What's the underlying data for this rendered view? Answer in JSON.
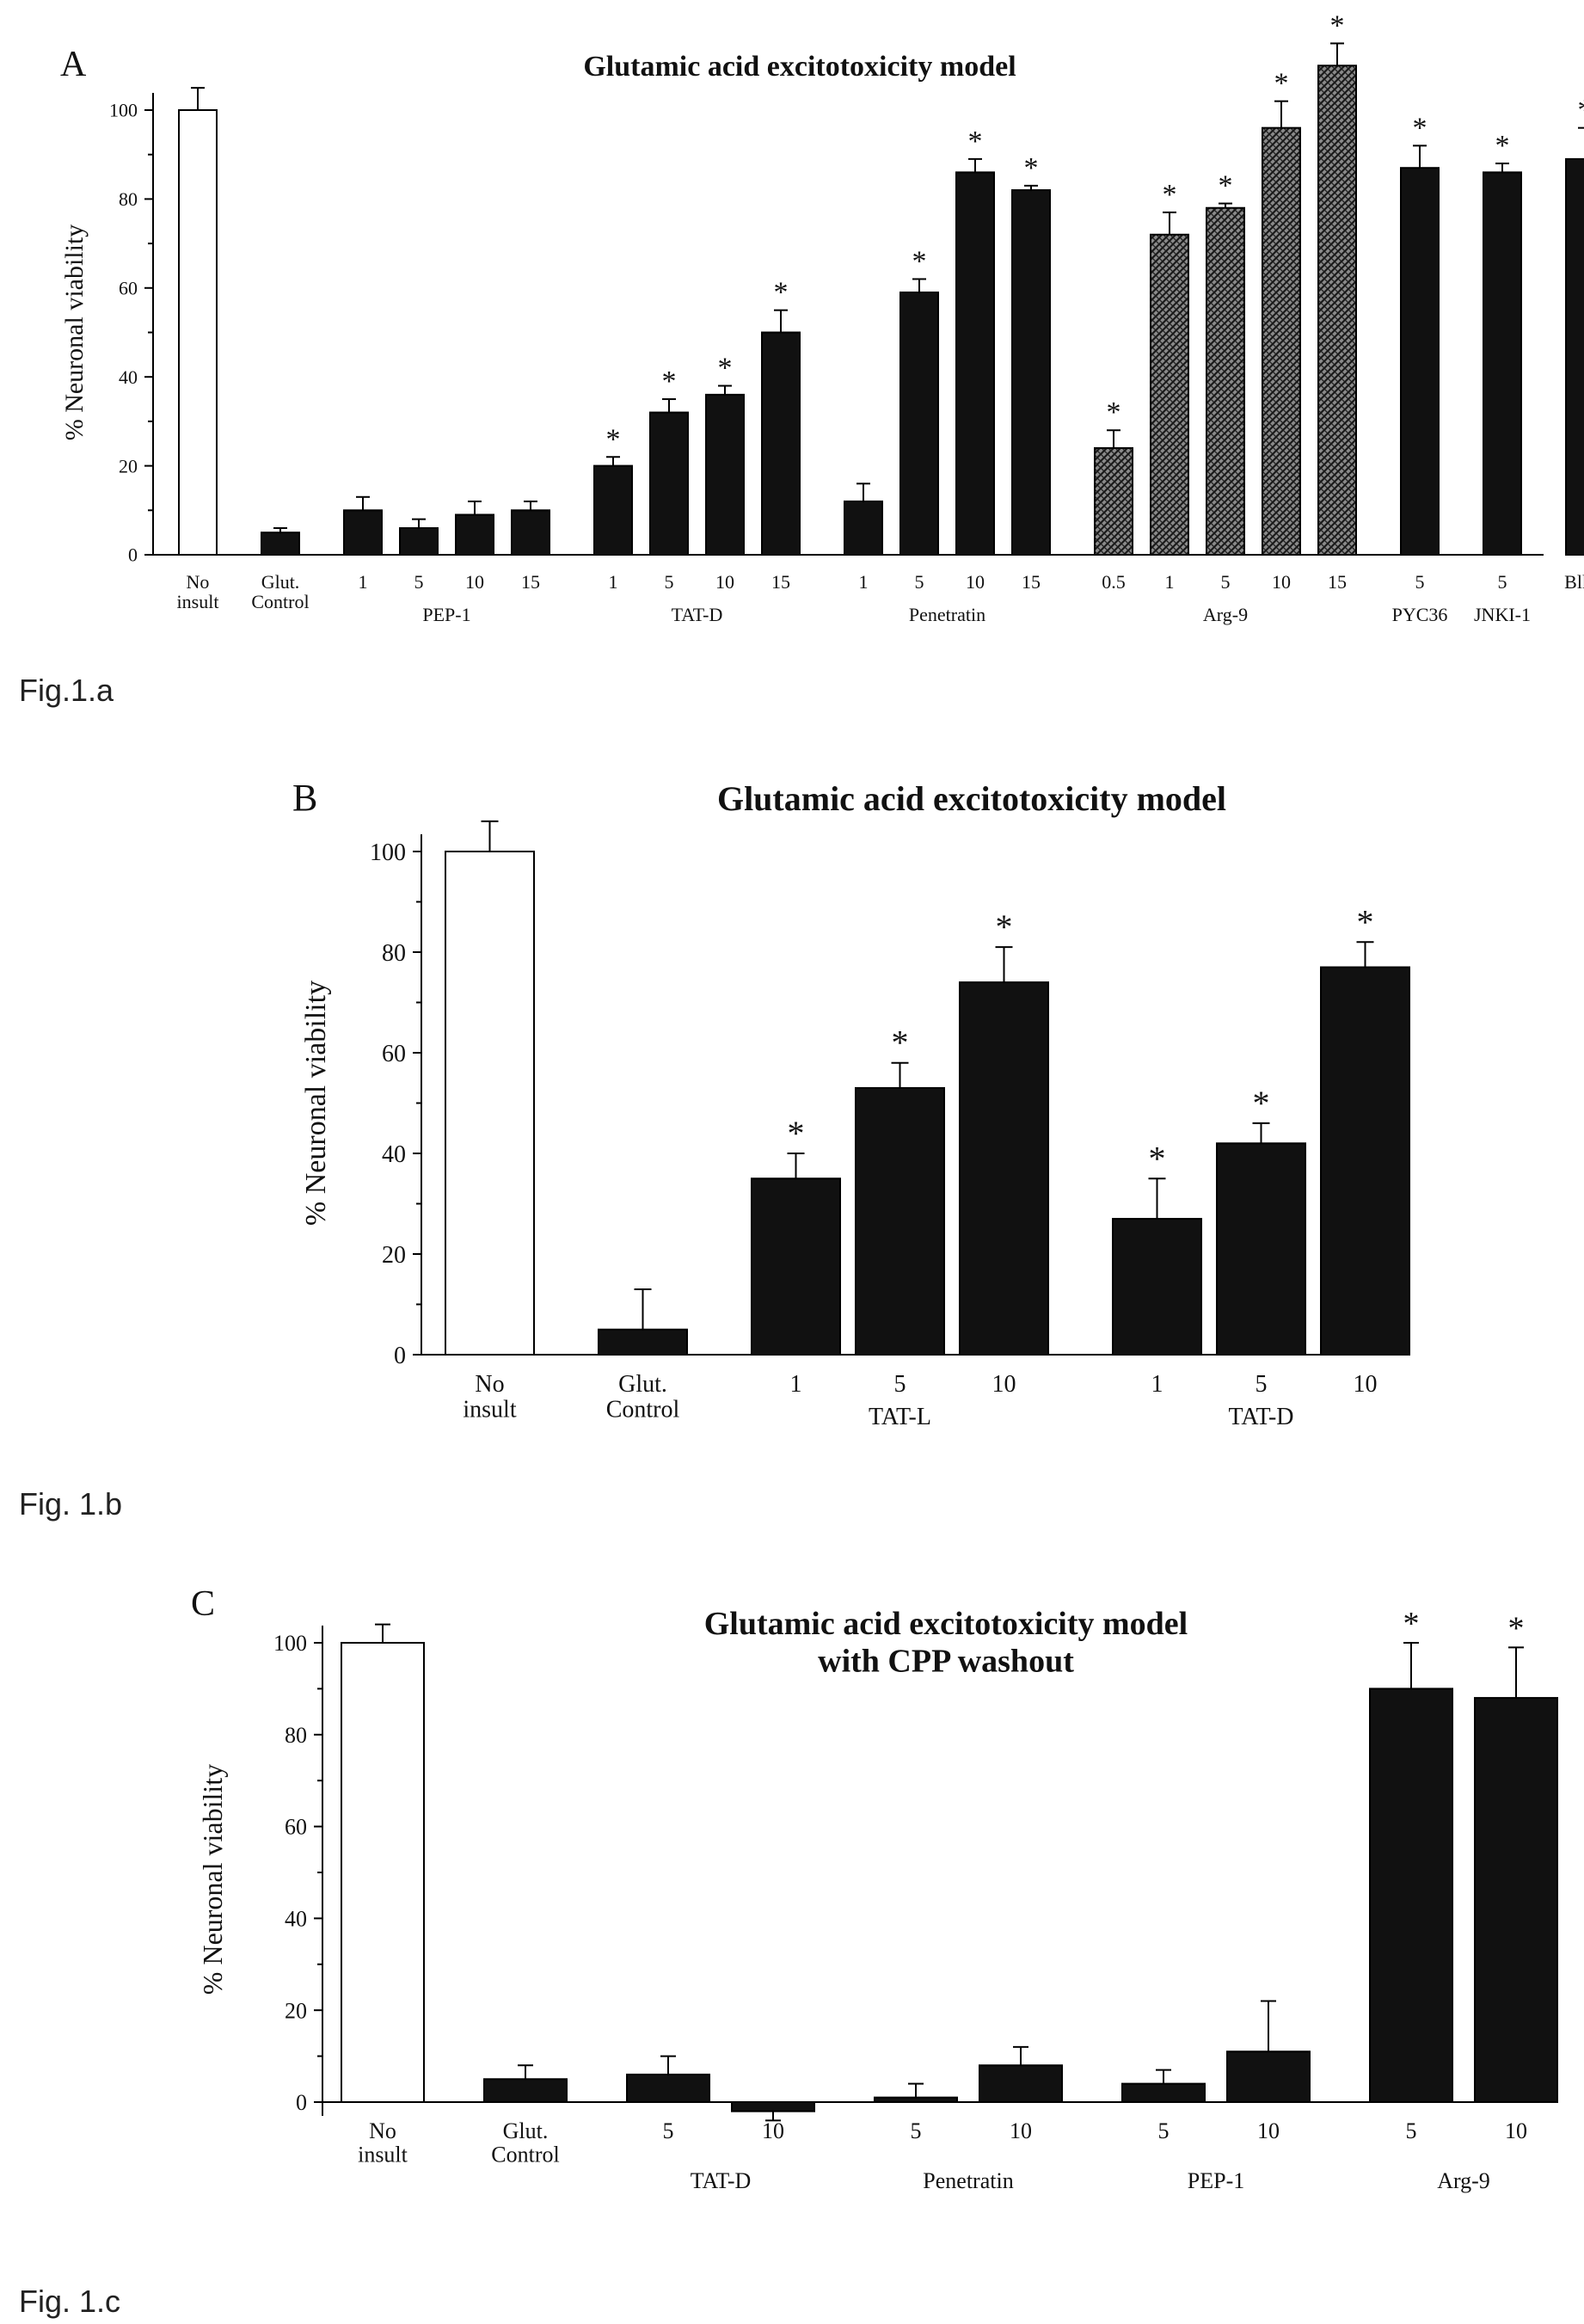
{
  "chart_data": [
    {
      "panel_letter": "A",
      "type": "bar",
      "title": "Glutamic acid excitotoxicity model",
      "ylabel": "% Neuronal viability",
      "ylim": [
        0,
        100
      ],
      "yticks": [
        "0",
        "20",
        "40",
        "60",
        "80",
        "100"
      ],
      "groups": [
        {
          "label": "",
          "bars": [
            {
              "tick": "No insult",
              "value": 100,
              "err": 5,
              "style": "open",
              "star": false
            }
          ]
        },
        {
          "label": "",
          "bars": [
            {
              "tick": "Glut. Control",
              "value": 5,
              "err": 1,
              "style": "solid",
              "star": false
            }
          ]
        },
        {
          "label": "PEP-1",
          "bars": [
            {
              "tick": "1",
              "value": 10,
              "err": 3,
              "style": "solid",
              "star": false
            },
            {
              "tick": "5",
              "value": 6,
              "err": 2,
              "style": "solid",
              "star": false
            },
            {
              "tick": "10",
              "value": 9,
              "err": 3,
              "style": "solid",
              "star": false
            },
            {
              "tick": "15",
              "value": 10,
              "err": 2,
              "style": "solid",
              "star": false
            }
          ]
        },
        {
          "label": "TAT-D",
          "bars": [
            {
              "tick": "1",
              "value": 20,
              "err": 2,
              "style": "solid",
              "star": true
            },
            {
              "tick": "5",
              "value": 32,
              "err": 3,
              "style": "solid",
              "star": true
            },
            {
              "tick": "10",
              "value": 36,
              "err": 2,
              "style": "solid",
              "star": true
            },
            {
              "tick": "15",
              "value": 50,
              "err": 5,
              "style": "solid",
              "star": true
            }
          ]
        },
        {
          "label": "Penetratin",
          "bars": [
            {
              "tick": "1",
              "value": 12,
              "err": 4,
              "style": "solid",
              "star": false
            },
            {
              "tick": "5",
              "value": 59,
              "err": 3,
              "style": "solid",
              "star": true
            },
            {
              "tick": "10",
              "value": 86,
              "err": 3,
              "style": "solid",
              "star": true
            },
            {
              "tick": "15",
              "value": 82,
              "err": 1,
              "style": "solid",
              "star": true
            }
          ]
        },
        {
          "label": "Arg-9",
          "bars": [
            {
              "tick": "0.5",
              "value": 24,
              "err": 4,
              "style": "hatched",
              "star": true
            },
            {
              "tick": "1",
              "value": 72,
              "err": 5,
              "style": "hatched",
              "star": true
            },
            {
              "tick": "5",
              "value": 78,
              "err": 1,
              "style": "hatched",
              "star": true
            },
            {
              "tick": "10",
              "value": 96,
              "err": 6,
              "style": "hatched",
              "star": true
            },
            {
              "tick": "15",
              "value": 110,
              "err": 5,
              "style": "hatched",
              "star": true
            }
          ]
        },
        {
          "label": "PYC36",
          "bars": [
            {
              "tick": "5",
              "value": 87,
              "err": 5,
              "style": "solid",
              "star": true
            }
          ]
        },
        {
          "label": "JNKI-1",
          "bars": [
            {
              "tick": "5",
              "value": 86,
              "err": 2,
              "style": "solid",
              "star": true
            }
          ]
        },
        {
          "label": "",
          "bars": [
            {
              "tick": "Blkrs",
              "value": 89,
              "err": 7,
              "style": "solid",
              "star": true
            }
          ]
        }
      ],
      "caption": "Fig.1.a"
    },
    {
      "panel_letter": "B",
      "type": "bar",
      "title": "Glutamic acid excitotoxicity model",
      "ylabel": "% Neuronal viability",
      "ylim": [
        0,
        100
      ],
      "yticks": [
        "0",
        "20",
        "40",
        "60",
        "80",
        "100"
      ],
      "groups": [
        {
          "label": "",
          "bars": [
            {
              "tick": "No insult",
              "value": 100,
              "err": 6,
              "style": "open",
              "star": false
            }
          ]
        },
        {
          "label": "",
          "bars": [
            {
              "tick": "Glut. Control",
              "value": 5,
              "err": 8,
              "style": "solid",
              "star": false
            }
          ]
        },
        {
          "label": "TAT-L",
          "bars": [
            {
              "tick": "1",
              "value": 35,
              "err": 5,
              "style": "solid",
              "star": true
            },
            {
              "tick": "5",
              "value": 53,
              "err": 5,
              "style": "solid",
              "star": true
            },
            {
              "tick": "10",
              "value": 74,
              "err": 7,
              "style": "solid",
              "star": true
            }
          ]
        },
        {
          "label": "TAT-D",
          "bars": [
            {
              "tick": "1",
              "value": 27,
              "err": 8,
              "style": "solid",
              "star": true
            },
            {
              "tick": "5",
              "value": 42,
              "err": 4,
              "style": "solid",
              "star": true
            },
            {
              "tick": "10",
              "value": 77,
              "err": 5,
              "style": "solid",
              "star": true
            }
          ]
        }
      ],
      "caption": "Fig. 1.b"
    },
    {
      "panel_letter": "C",
      "type": "bar",
      "title": "Glutamic acid excitotoxicity model",
      "subtitle": "with CPP washout",
      "ylabel": "% Neuronal viability",
      "ylim": [
        0,
        100
      ],
      "yticks": [
        "0",
        "20",
        "40",
        "60",
        "80",
        "100"
      ],
      "groups": [
        {
          "label": "",
          "bars": [
            {
              "tick": "No insult",
              "value": 100,
              "err": 4,
              "style": "open",
              "star": false
            }
          ]
        },
        {
          "label": "",
          "bars": [
            {
              "tick": "Glut. Control",
              "value": 5,
              "err": 3,
              "style": "solid",
              "star": false
            }
          ]
        },
        {
          "label": "TAT-D",
          "bars": [
            {
              "tick": "5",
              "value": 6,
              "err": 4,
              "style": "solid",
              "star": false
            },
            {
              "tick": "10",
              "value": -2,
              "err": 2,
              "style": "solid",
              "star": false
            }
          ]
        },
        {
          "label": "Penetratin",
          "bars": [
            {
              "tick": "5",
              "value": 1,
              "err": 3,
              "style": "solid",
              "star": false
            },
            {
              "tick": "10",
              "value": 8,
              "err": 4,
              "style": "solid",
              "star": false
            }
          ]
        },
        {
          "label": "PEP-1",
          "bars": [
            {
              "tick": "5",
              "value": 4,
              "err": 3,
              "style": "solid",
              "star": false
            },
            {
              "tick": "10",
              "value": 11,
              "err": 11,
              "style": "solid",
              "star": false
            }
          ]
        },
        {
          "label": "Arg-9",
          "bars": [
            {
              "tick": "5",
              "value": 90,
              "err": 10,
              "style": "solid",
              "star": true
            },
            {
              "tick": "10",
              "value": 88,
              "err": 11,
              "style": "solid",
              "star": true
            }
          ]
        }
      ],
      "caption": "Fig. 1.c"
    }
  ],
  "colors": {
    "bar_fill": "#111111",
    "open_fill": "#ffffff",
    "axis": "#000000"
  }
}
